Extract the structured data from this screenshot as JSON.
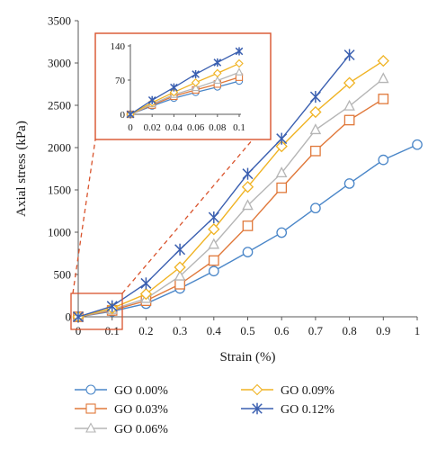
{
  "chart_data": {
    "type": "line",
    "xlabel": "Strain (%)",
    "ylabel": "Axial stress (kPa)",
    "xlim": [
      0,
      1
    ],
    "ylim": [
      0,
      3500
    ],
    "xticks": [
      "0",
      "0.1",
      "0.2",
      "0.3",
      "0.4",
      "0.5",
      "0.6",
      "0.7",
      "0.8",
      "0.9",
      "1"
    ],
    "yticks": [
      "0",
      "500",
      "1000",
      "1500",
      "2000",
      "2500",
      "3000",
      "3500"
    ],
    "grid": false,
    "legend_position": "bottom",
    "series": [
      {
        "name": "GO 0.00%",
        "color": "#4a86c8",
        "marker": "circle",
        "x": [
          0,
          0.1,
          0.2,
          0.3,
          0.4,
          0.5,
          0.6,
          0.7,
          0.8,
          0.9,
          1.0
        ],
        "y": [
          0,
          65,
          155,
          335,
          540,
          765,
          995,
          1285,
          1575,
          1855,
          2035
        ]
      },
      {
        "name": "GO 0.03%",
        "color": "#e0783a",
        "marker": "square",
        "x": [
          0,
          0.1,
          0.2,
          0.3,
          0.4,
          0.5,
          0.6,
          0.7,
          0.8,
          0.9
        ],
        "y": [
          0,
          75,
          190,
          385,
          665,
          1075,
          1525,
          1960,
          2325,
          2575
        ]
      },
      {
        "name": "GO 0.06%",
        "color": "#b5b5b5",
        "marker": "triangle",
        "x": [
          0,
          0.1,
          0.2,
          0.3,
          0.4,
          0.5,
          0.6,
          0.7,
          0.8,
          0.9
        ],
        "y": [
          0,
          85,
          215,
          480,
          855,
          1315,
          1700,
          2210,
          2490,
          2815
        ]
      },
      {
        "name": "GO 0.09%",
        "color": "#f0b323",
        "marker": "diamond",
        "x": [
          0,
          0.1,
          0.2,
          0.3,
          0.4,
          0.5,
          0.6,
          0.7,
          0.8,
          0.9
        ],
        "y": [
          0,
          100,
          270,
          585,
          1035,
          1535,
          2015,
          2420,
          2765,
          3025
        ]
      },
      {
        "name": "GO 0.12%",
        "color": "#3a5fb0",
        "marker": "asterisk",
        "x": [
          0,
          0.1,
          0.2,
          0.3,
          0.4,
          0.5,
          0.6,
          0.7,
          0.8
        ],
        "y": [
          0,
          125,
          395,
          795,
          1175,
          1690,
          2105,
          2600,
          3095
        ]
      }
    ],
    "inset": {
      "xlim": [
        0,
        0.1
      ],
      "ylim": [
        0,
        140
      ],
      "xticks": [
        "0",
        "0.02",
        "0.04",
        "0.06",
        "0.08",
        "0.1"
      ],
      "yticks": [
        "0",
        "70",
        "140"
      ],
      "series": [
        {
          "x": [
            0,
            0.02,
            0.04,
            0.06,
            0.08,
            0.1
          ],
          "y": [
            0,
            17,
            33,
            45,
            56,
            68
          ]
        },
        {
          "x": [
            0,
            0.02,
            0.04,
            0.06,
            0.08,
            0.1
          ],
          "y": [
            0,
            19,
            37,
            50,
            62,
            76
          ]
        },
        {
          "x": [
            0,
            0.02,
            0.04,
            0.06,
            0.08,
            0.1
          ],
          "y": [
            0,
            21,
            40,
            54,
            69,
            86
          ]
        },
        {
          "x": [
            0,
            0.02,
            0.04,
            0.06,
            0.08,
            0.1
          ],
          "y": [
            0,
            24,
            45,
            65,
            84,
            104
          ]
        },
        {
          "x": [
            0,
            0.02,
            0.04,
            0.06,
            0.08,
            0.1
          ],
          "y": [
            0,
            29,
            55,
            82,
            106,
            129
          ]
        }
      ]
    }
  }
}
